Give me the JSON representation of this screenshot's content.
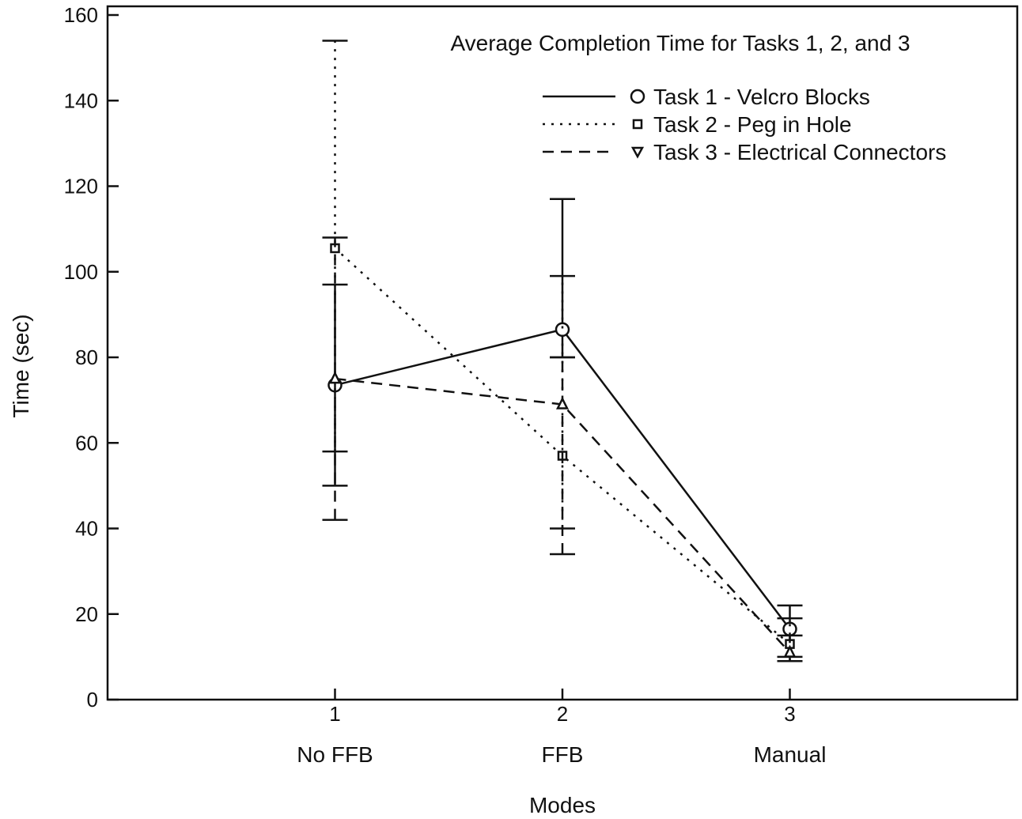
{
  "chart_data": {
    "type": "line",
    "title": "Average Completion Time for Tasks 1, 2, and 3",
    "xlabel": "Modes",
    "ylabel": "Time (sec)",
    "x": [
      1,
      2,
      3
    ],
    "x_tick_labels": [
      "1",
      "2",
      "3"
    ],
    "categories": [
      "No FFB",
      "FFB",
      "Manual"
    ],
    "y_ticks": [
      0,
      20,
      40,
      60,
      80,
      100,
      120,
      140,
      160
    ],
    "ylim": [
      0,
      160
    ],
    "xlim": [
      0,
      4
    ],
    "grid": false,
    "legend_position": "top-right",
    "series": [
      {
        "name": "Task 1 - Velcro Blocks",
        "line_style": "solid",
        "marker": "circle",
        "values": [
          73.5,
          86.5,
          16.5
        ],
        "error_low": [
          50,
          80,
          10
        ],
        "error_high": [
          97,
          117,
          22
        ]
      },
      {
        "name": "Task 2 - Peg in Hole",
        "line_style": "dotted",
        "marker": "square",
        "values": [
          105.5,
          57,
          13
        ],
        "error_low": [
          58,
          40,
          9
        ],
        "error_high": [
          154,
          99,
          19
        ]
      },
      {
        "name": "Task 3 - Electrical Connectors",
        "line_style": "dashed",
        "marker": "triangle",
        "values": [
          75,
          69,
          11
        ],
        "error_low": [
          42,
          34,
          9
        ],
        "error_high": [
          108,
          80,
          15
        ]
      }
    ]
  }
}
